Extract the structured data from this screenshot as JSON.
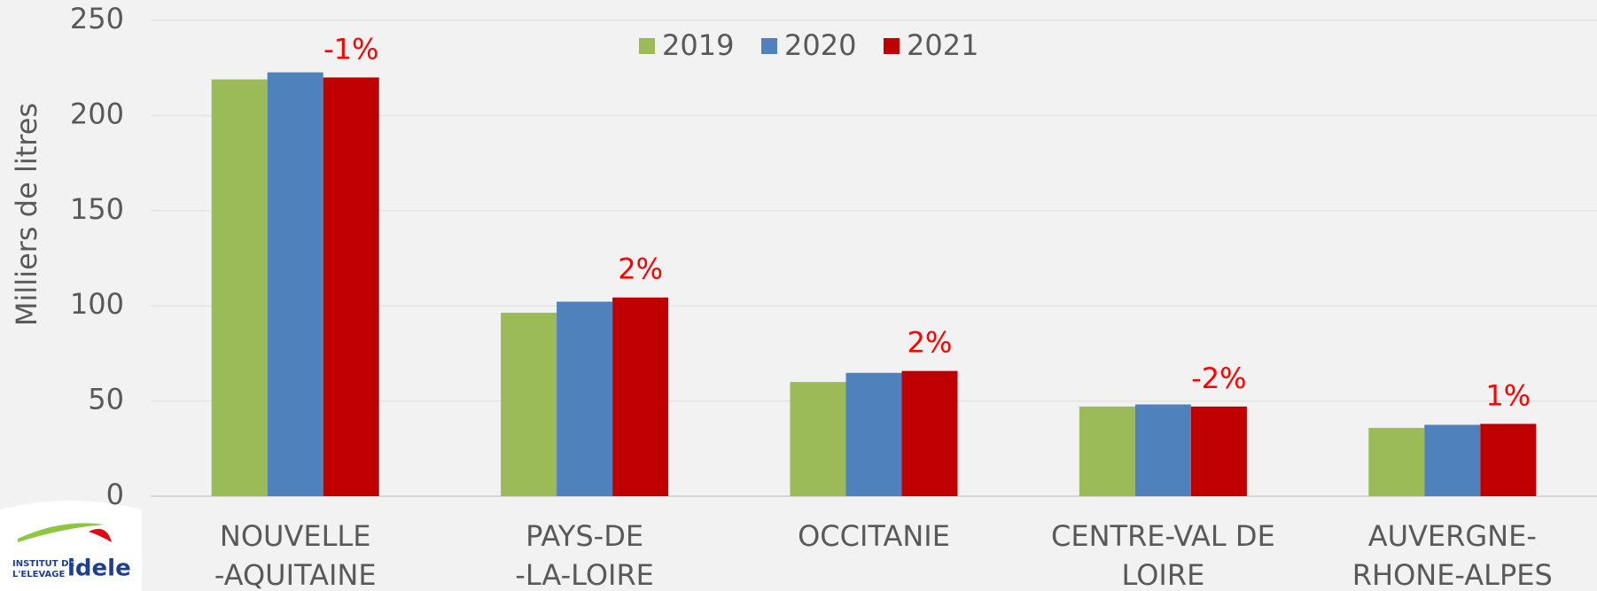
{
  "chart_data": {
    "type": "bar",
    "y_label": "Milliers de litres",
    "categories": [
      [
        "NOUVELLE",
        "-AQUITAINE"
      ],
      [
        "PAYS-DE",
        "-LA-LOIRE"
      ],
      [
        "OCCITANIE"
      ],
      [
        "CENTRE-VAL DE",
        "LOIRE"
      ],
      [
        "AUVERGNE-",
        "RHONE-ALPES"
      ]
    ],
    "series": [
      {
        "name": "2019",
        "color": "#9bbb59",
        "values": [
          219,
          96.4,
          60,
          47.1,
          35.9
        ]
      },
      {
        "name": "2020",
        "color": "#4f81bd",
        "values": [
          222.7,
          102.2,
          64.8,
          48.2,
          37.5
        ]
      },
      {
        "name": "2021",
        "color": "#c00000",
        "values": [
          220,
          104.4,
          65.8,
          47.1,
          38
        ]
      }
    ],
    "annotations": [
      "-1%",
      "2%",
      "2%",
      "-2%",
      "1%"
    ],
    "ylim": [
      0,
      250
    ],
    "yticks": [
      0,
      50,
      100,
      150,
      200,
      250
    ],
    "grid": true,
    "legend": "top",
    "logo": {
      "line1": "INSTITUT DE",
      "line2": "L'ELEVAGE",
      "brand": "idele"
    }
  }
}
